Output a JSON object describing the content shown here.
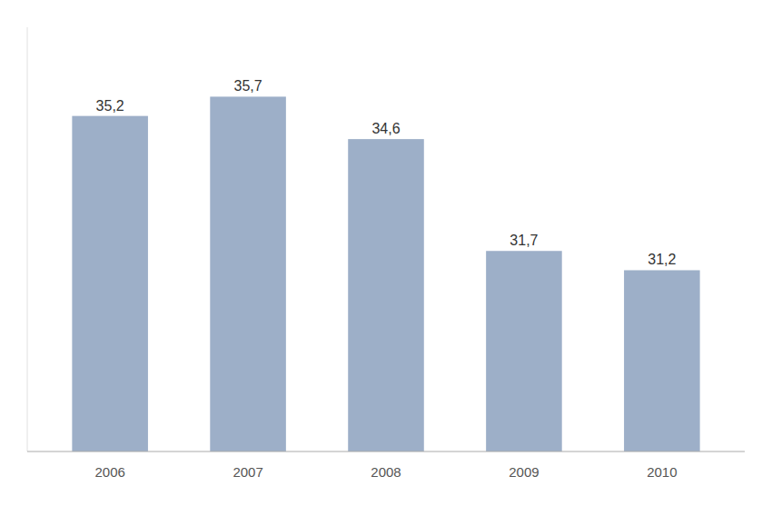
{
  "chart_data": {
    "type": "bar",
    "categories": [
      "2006",
      "2007",
      "2008",
      "2009",
      "2010"
    ],
    "values": [
      35.2,
      35.7,
      34.6,
      31.7,
      31.2
    ],
    "value_labels": [
      "35,2",
      "35,7",
      "34,6",
      "31,7",
      "31,2"
    ],
    "color": "#9DAFC8",
    "ylim": [
      26.5,
      37.5
    ],
    "grid": false,
    "data_labels": true,
    "tick_labels": "x"
  }
}
